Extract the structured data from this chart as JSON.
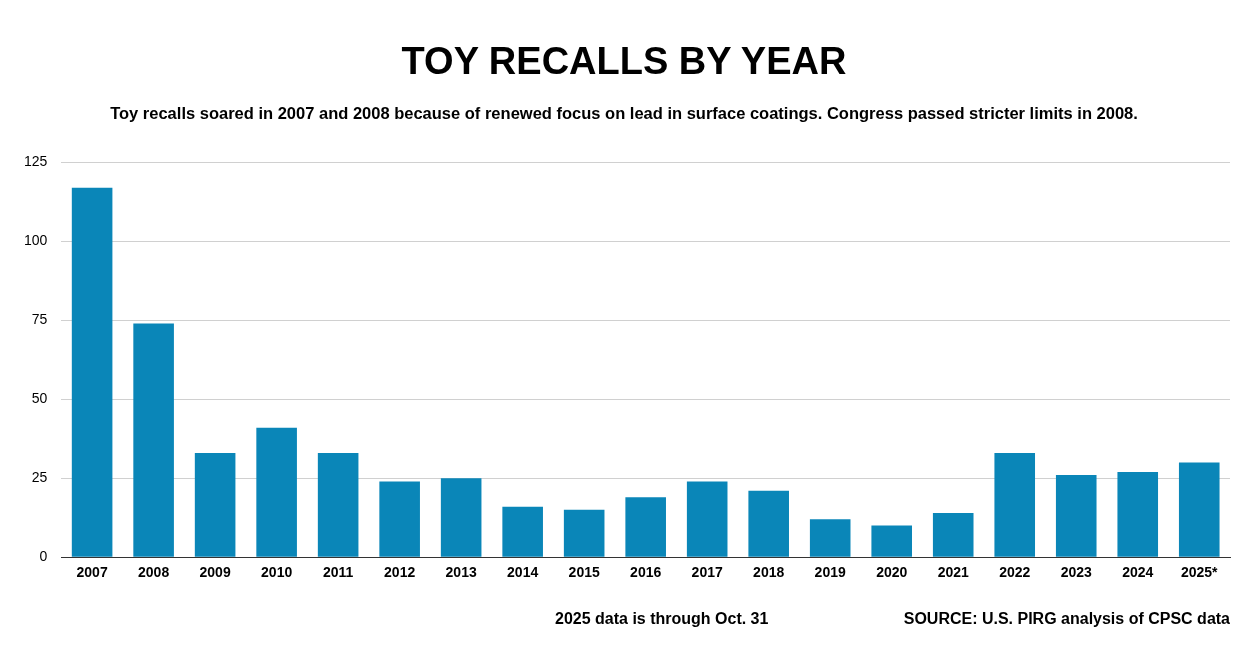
{
  "chart_data": {
    "type": "bar",
    "title": "TOY RECALLS BY YEAR",
    "subtitle": "Toy recalls soared in 2007 and 2008 because of renewed focus on lead in surface coatings. Congress passed stricter limits in 2008.",
    "categories": [
      "2007",
      "2008",
      "2009",
      "2010",
      "2011",
      "2012",
      "2013",
      "2014",
      "2015",
      "2016",
      "2017",
      "2018",
      "2019",
      "2020",
      "2021",
      "2022",
      "2023",
      "2024",
      "2025*"
    ],
    "values": [
      117,
      74,
      33,
      41,
      33,
      24,
      25,
      16,
      15,
      19,
      24,
      21,
      12,
      10,
      14,
      33,
      26,
      27,
      30
    ],
    "color": "#0a86b8",
    "ylim": [
      0,
      125
    ],
    "yticks": [
      0,
      25,
      50,
      75,
      100,
      125
    ],
    "grid": "y",
    "annotations": [
      "2025 data is through Oct. 31",
      "SOURCE: U.S. PIRG analysis of CPSC data"
    ]
  }
}
